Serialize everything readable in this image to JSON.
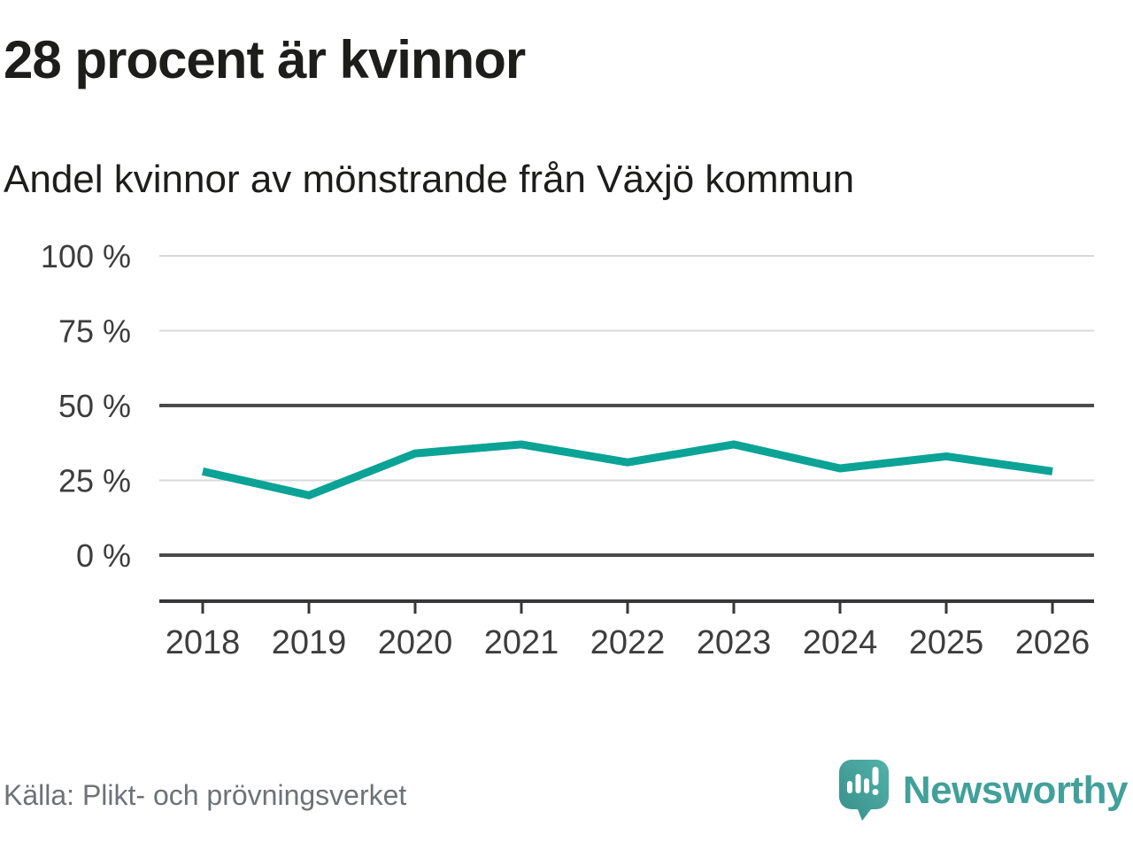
{
  "header": {
    "title": "28 procent är kvinnor",
    "subtitle": "Andel kvinnor av mönstrande från Växjö kommun"
  },
  "footer": {
    "source": "Källa: Plikt- och prövningsverket",
    "brand_name": "Newsworthy",
    "brand_logo_icon": "newsworthy-speech-bubble-bar-chart-icon"
  },
  "colors": {
    "line": "#0aa396",
    "grid_light": "#d9d9d9",
    "grid_dark": "#4b4b4d",
    "axis": "#37373a",
    "tick_label": "#3d3d3d",
    "title_text": "#1d1d1b",
    "source_text": "#6e7276",
    "brand_teal": "#42a09a",
    "brand_gradient_top": "#52b1a9",
    "brand_gradient_bottom": "#38908a"
  },
  "chart_data": {
    "type": "line",
    "title": "28 procent är kvinnor",
    "subtitle": "Andel kvinnor av mönstrande från Växjö kommun",
    "x": [
      2018,
      2019,
      2020,
      2021,
      2022,
      2023,
      2024,
      2025,
      2026
    ],
    "series": [
      {
        "name": "Andel kvinnor av mönstrande",
        "values": [
          28,
          20,
          34,
          37,
          31,
          37,
          29,
          33,
          28
        ]
      }
    ],
    "unit": "%",
    "xlabel": "",
    "ylabel": "",
    "ylim": [
      0,
      100
    ],
    "y_gridlines": [
      100,
      75,
      50,
      25,
      0
    ],
    "y_tick_labels": [
      "100 %",
      "75 %",
      "50 %",
      "25 %",
      "0 %"
    ],
    "emphasized_gridlines": [
      50,
      0
    ],
    "grid": "horizontal",
    "legend": "none"
  }
}
